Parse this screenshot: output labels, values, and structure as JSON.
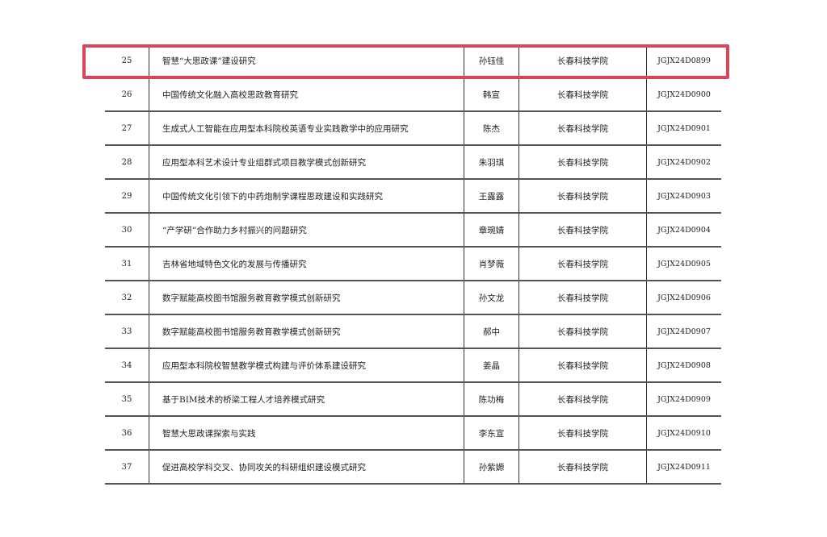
{
  "highlight_color": "#d9455a",
  "rows": [
    {
      "no": "25",
      "title": "智慧“大思政课”建设研究",
      "name": "孙钰佳",
      "school": "长春科技学院",
      "code": "JGJX24D0899"
    },
    {
      "no": "26",
      "title": "中国传统文化融入高校思政教育研究",
      "name": "韩宣",
      "school": "长春科技学院",
      "code": "JGJX24D0900"
    },
    {
      "no": "27",
      "title": "生成式人工智能在应用型本科院校英语专业实践教学中的应用研究",
      "name": "陈杰",
      "school": "长春科技学院",
      "code": "JGJX24D0901"
    },
    {
      "no": "28",
      "title": "应用型本科艺术设计专业组群式项目教学模式创新研究",
      "name": "朱羽琪",
      "school": "长春科技学院",
      "code": "JGJX24D0902"
    },
    {
      "no": "29",
      "title": "中国传统文化引领下的中药炮制学课程思政建设和实践研究",
      "name": "王露露",
      "school": "长春科技学院",
      "code": "JGJX24D0903"
    },
    {
      "no": "30",
      "title": "“产学研”合作助力乡村振兴的问题研究",
      "name": "章琬婧",
      "school": "长春科技学院",
      "code": "JGJX24D0904"
    },
    {
      "no": "31",
      "title": "吉林省地域特色文化的发展与传播研究",
      "name": "肖梦薇",
      "school": "长春科技学院",
      "code": "JGJX24D0905"
    },
    {
      "no": "32",
      "title": "数字赋能高校图书馆服务教育教学模式创新研究",
      "name": "孙文龙",
      "school": "长春科技学院",
      "code": "JGJX24D0906"
    },
    {
      "no": "33",
      "title": "数字赋能高校图书馆服务教育教学模式创新研究",
      "name": "郝中",
      "school": "长春科技学院",
      "code": "JGJX24D0907"
    },
    {
      "no": "34",
      "title": "应用型本科院校智慧教学模式构建与评价体系建设研究",
      "name": "姜晶",
      "school": "长春科技学院",
      "code": "JGJX24D0908"
    },
    {
      "no": "35",
      "title": "基于BIM技术的桥梁工程人才培养模式研究",
      "name": "陈功梅",
      "school": "长春科技学院",
      "code": "JGJX24D0909"
    },
    {
      "no": "36",
      "title": "智慧大思政课探索与实践",
      "name": "李东宣",
      "school": "长春科技学院",
      "code": "JGJX24D0910"
    },
    {
      "no": "37",
      "title": "促进高校学科交叉、协同攻关的科研组织建设模式研究",
      "name": "孙紫嫄",
      "school": "长春科技学院",
      "code": "JGJX24D0911"
    }
  ]
}
